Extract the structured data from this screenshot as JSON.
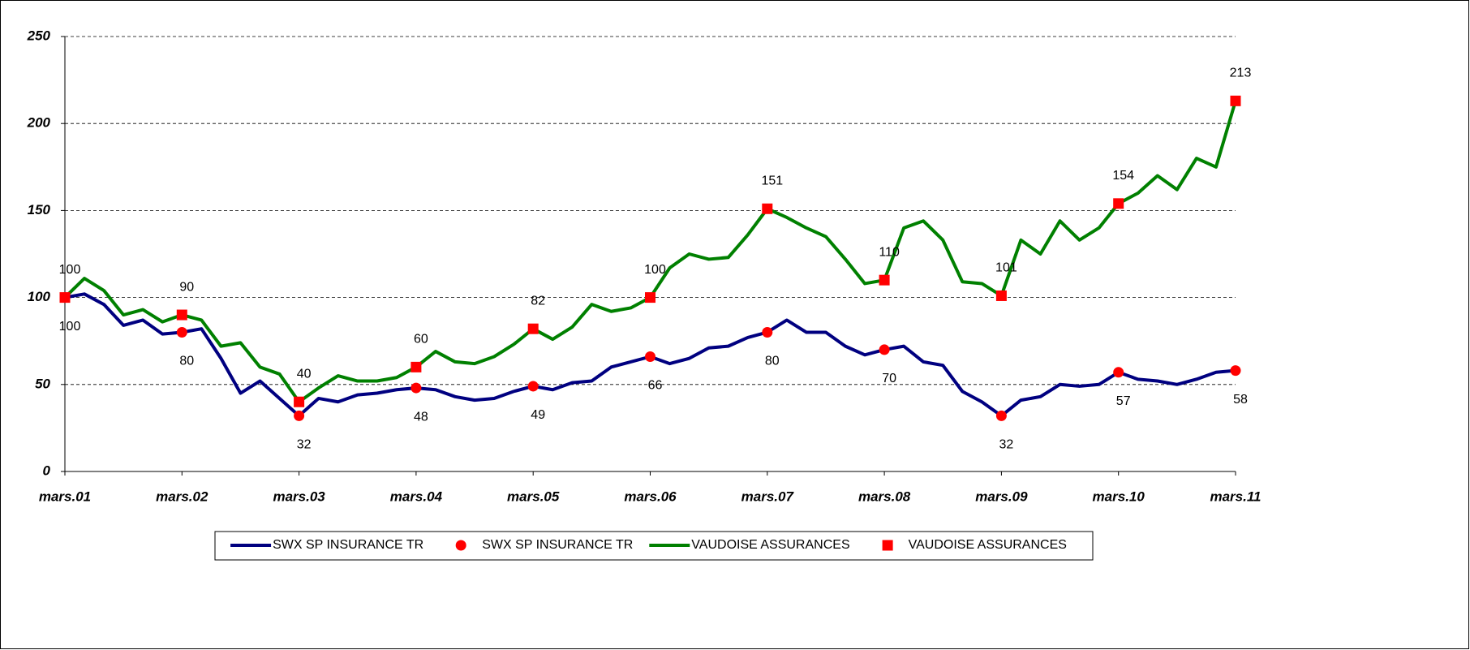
{
  "chart_data": {
    "type": "line",
    "categories": [
      "mars.01",
      null,
      null,
      null,
      null,
      null,
      "mars.02",
      null,
      null,
      null,
      null,
      null,
      "mars.03",
      null,
      null,
      null,
      null,
      null,
      "mars.04",
      null,
      null,
      null,
      null,
      null,
      "mars.05",
      null,
      null,
      null,
      null,
      null,
      "mars.06",
      null,
      null,
      null,
      null,
      null,
      "mars.07",
      null,
      null,
      null,
      null,
      null,
      "mars.08",
      null,
      null,
      null,
      null,
      null,
      "mars.09",
      null,
      null,
      null,
      null,
      null,
      "mars.10",
      null,
      null,
      null,
      null,
      null,
      "mars.11"
    ],
    "series": [
      {
        "name": "SWX SP INSURANCE TR",
        "style": "line",
        "color": "#000080",
        "values": [
          100,
          102,
          96,
          84,
          87,
          79,
          80,
          82,
          65,
          45,
          52,
          42,
          32,
          42,
          40,
          44,
          45,
          47,
          48,
          47,
          43,
          41,
          42,
          46,
          49,
          47,
          51,
          52,
          60,
          63,
          66,
          62,
          65,
          71,
          72,
          77,
          80,
          87,
          80,
          80,
          72,
          67,
          70,
          72,
          63,
          61,
          46,
          40,
          32,
          41,
          43,
          50,
          49,
          50,
          57,
          53,
          52,
          50,
          53,
          57,
          58
        ]
      },
      {
        "name": "SWX SP INSURANCE TR",
        "style": "marker",
        "marker": "circle",
        "color": "#ff0000",
        "label_side": "below",
        "values": [
          100,
          null,
          null,
          null,
          null,
          null,
          80,
          null,
          null,
          null,
          null,
          null,
          32,
          null,
          null,
          null,
          null,
          null,
          48,
          null,
          null,
          null,
          null,
          null,
          49,
          null,
          null,
          null,
          null,
          null,
          66,
          null,
          null,
          null,
          null,
          null,
          80,
          null,
          null,
          null,
          null,
          null,
          70,
          null,
          null,
          null,
          null,
          null,
          32,
          null,
          null,
          null,
          null,
          null,
          57,
          null,
          null,
          null,
          null,
          null,
          58
        ]
      },
      {
        "name": "VAUDOISE ASSURANCES",
        "style": "line",
        "color": "#008000",
        "values": [
          100,
          111,
          104,
          90,
          93,
          86,
          90,
          87,
          72,
          74,
          60,
          56,
          40,
          48,
          55,
          52,
          52,
          54,
          60,
          69,
          63,
          62,
          66,
          73,
          82,
          76,
          83,
          96,
          92,
          94,
          100,
          117,
          125,
          122,
          123,
          136,
          151,
          146,
          140,
          135,
          122,
          108,
          110,
          140,
          144,
          133,
          109,
          108,
          101,
          133,
          125,
          144,
          133,
          140,
          154,
          160,
          170,
          162,
          180,
          175,
          213
        ]
      },
      {
        "name": "VAUDOISE ASSURANCES",
        "style": "marker",
        "marker": "square",
        "color": "#ff0000",
        "label_side": "above",
        "values": [
          100,
          null,
          null,
          null,
          null,
          null,
          90,
          null,
          null,
          null,
          null,
          null,
          40,
          null,
          null,
          null,
          null,
          null,
          60,
          null,
          null,
          null,
          null,
          null,
          82,
          null,
          null,
          null,
          null,
          null,
          100,
          null,
          null,
          null,
          null,
          null,
          151,
          null,
          null,
          null,
          null,
          null,
          110,
          null,
          null,
          null,
          null,
          null,
          101,
          null,
          null,
          null,
          null,
          null,
          154,
          null,
          null,
          null,
          null,
          null,
          213
        ]
      }
    ],
    "ylim": [
      0,
      250
    ],
    "yticks": [
      0,
      50,
      100,
      150,
      200,
      250
    ],
    "grid": true,
    "legend": "bottom"
  }
}
